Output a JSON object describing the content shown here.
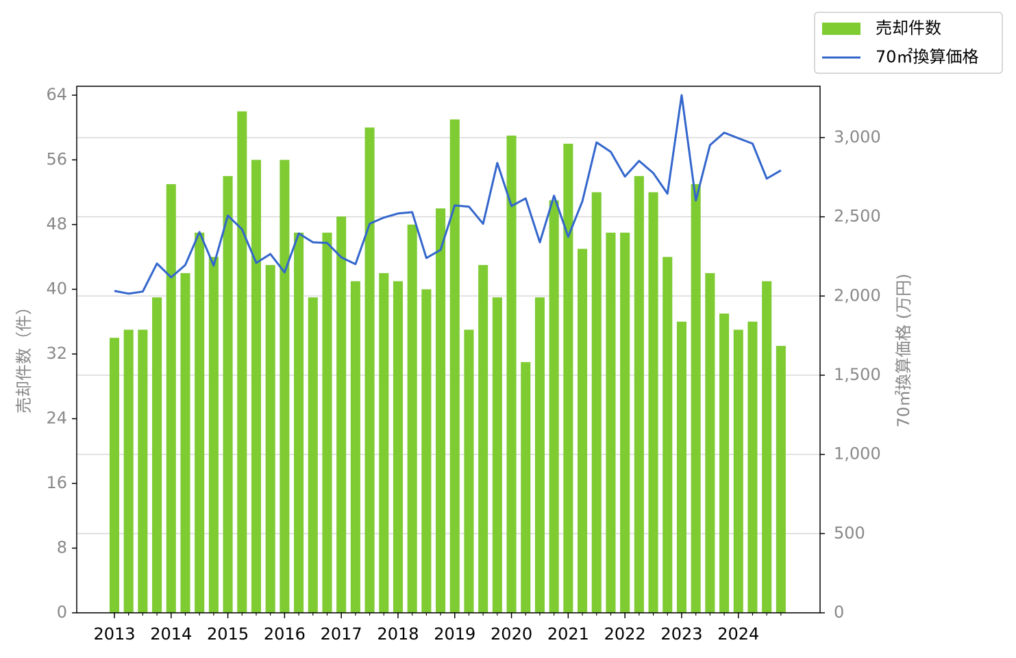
{
  "chart_data": {
    "type": "bar_line",
    "x": [
      2013,
      2013.25,
      2013.5,
      2013.75,
      2014,
      2014.25,
      2014.5,
      2014.75,
      2015,
      2015.25,
      2015.5,
      2015.75,
      2016,
      2016.25,
      2016.5,
      2016.75,
      2017,
      2017.25,
      2017.5,
      2017.75,
      2018,
      2018.25,
      2018.5,
      2018.75,
      2019,
      2019.25,
      2019.5,
      2019.75,
      2020,
      2020.25,
      2020.5,
      2020.75,
      2021,
      2021.25,
      2021.5,
      2021.75,
      2022,
      2022.25,
      2022.5,
      2022.75,
      2023,
      2023.25,
      2023.5,
      2023.75,
      2024,
      2024.25,
      2024.5,
      2024.75
    ],
    "series": [
      {
        "name": "売却件数",
        "color": "#7ecb32",
        "type": "bar",
        "values": [
          34,
          35,
          35,
          39,
          53,
          42,
          47,
          44,
          54,
          62,
          56,
          43,
          56,
          47,
          39,
          47,
          49,
          41,
          60,
          42,
          41,
          48,
          40,
          50,
          61,
          35,
          43,
          39,
          59,
          31,
          39,
          51,
          58,
          45,
          52,
          47,
          47,
          54,
          52,
          44,
          36,
          53,
          42,
          37,
          35,
          36,
          41,
          33
        ]
      },
      {
        "name": "70㎡換算価格",
        "color": "#3366cc",
        "type": "line",
        "axis": "y2",
        "values": [
          2032,
          2015,
          2028,
          2205,
          2118,
          2196,
          2404,
          2192,
          2508,
          2421,
          2209,
          2265,
          2149,
          2395,
          2339,
          2335,
          2244,
          2201,
          2456,
          2495,
          2521,
          2529,
          2240,
          2291,
          2572,
          2564,
          2456,
          2840,
          2568,
          2616,
          2339,
          2633,
          2374,
          2598,
          2970,
          2910,
          2754,
          2853,
          2776,
          2646,
          3268,
          2603,
          2953,
          3031,
          2996,
          2962,
          2741,
          2793
        ]
      }
    ],
    "xlim": [
      2012.336,
      2025.44
    ],
    "xticks": [
      2013,
      2014,
      2015,
      2016,
      2017,
      2018,
      2019,
      2020,
      2021,
      2022,
      2023,
      2024
    ],
    "ylim": [
      0,
      65.1
    ],
    "yticks": [
      0,
      8,
      16,
      24,
      32,
      40,
      48,
      56,
      64
    ],
    "y2lim": [
      0,
      3324
    ],
    "y2ticks": [
      0,
      500,
      {
        "value": 1000,
        "label": "1,000"
      },
      {
        "value": 1500,
        "label": "1,500"
      },
      {
        "value": 2000,
        "label": "2,000"
      },
      {
        "value": 2500,
        "label": "2,500"
      },
      {
        "value": 3000,
        "label": "3,000"
      }
    ],
    "ylabel": "売却件数（件）",
    "y2label": "70㎡換算価格 (万円)",
    "grid": "y2",
    "legend": "upper right"
  }
}
